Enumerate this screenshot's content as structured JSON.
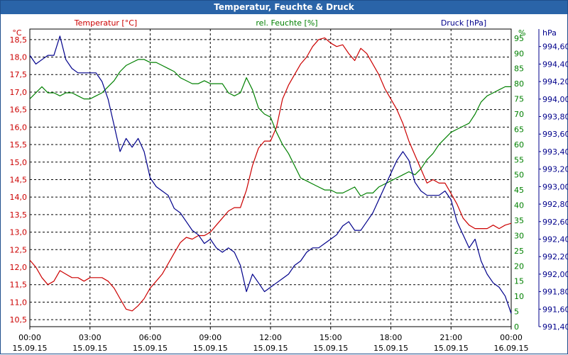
{
  "window": {
    "title": "Temperatur, Feuchte & Druck"
  },
  "colors": {
    "temperature": "#cc0000",
    "humidity": "#008000",
    "pressure": "#00008b",
    "title_bg": "#2a64a8",
    "grid": "#000000"
  },
  "chart_data": {
    "type": "line",
    "title": "Temperatur, Feuchte & Druck",
    "grid": true,
    "x_ticks": [
      {
        "time": "00:00",
        "date": "15.09.15"
      },
      {
        "time": "03:00",
        "date": "15.09.15"
      },
      {
        "time": "06:00",
        "date": "15.09.15"
      },
      {
        "time": "09:00",
        "date": "15.09.15"
      },
      {
        "time": "12:00",
        "date": "15.09.15"
      },
      {
        "time": "15:00",
        "date": "15.09.15"
      },
      {
        "time": "18:00",
        "date": "15.09.15"
      },
      {
        "time": "21:00",
        "date": "15.09.15"
      },
      {
        "time": "00:00",
        "date": "16.09.15"
      }
    ],
    "axes": {
      "temperature": {
        "label": "Temperatur [°C]",
        "unit": "°C",
        "ylim": [
          10.3,
          18.8
        ],
        "ticks": [
          "10,5",
          "11,0",
          "11,5",
          "12,0",
          "12,5",
          "13,0",
          "13,5",
          "14,0",
          "14,5",
          "15,0",
          "15,5",
          "16,0",
          "16,5",
          "17,0",
          "17,5",
          "18,0",
          "18,5"
        ]
      },
      "humidity": {
        "label": "rel. Feuchte [%]",
        "unit": "%",
        "ylim": [
          0,
          98
        ],
        "ticks": [
          "0",
          "5",
          "10",
          "15",
          "20",
          "25",
          "30",
          "35",
          "40",
          "45",
          "50",
          "55",
          "60",
          "65",
          "70",
          "75",
          "80",
          "85",
          "90",
          "95"
        ]
      },
      "pressure": {
        "label": "Druck [hPa]",
        "unit": "hPa",
        "ylim": [
          991.4,
          994.8
        ],
        "ticks": [
          "991,40",
          "991,60",
          "991,80",
          "992,00",
          "992,20",
          "992,40",
          "992,60",
          "992,80",
          "993,00",
          "993,20",
          "993,40",
          "993,60",
          "993,80",
          "994,00",
          "994,20",
          "994,40",
          "994,60"
        ]
      }
    },
    "x_range_hours": [
      0,
      24
    ],
    "series": [
      {
        "name": "Temperatur [°C]",
        "axis": "temperature",
        "x": [
          0,
          0.3,
          0.6,
          0.9,
          1.2,
          1.5,
          1.8,
          2.1,
          2.4,
          2.7,
          3.0,
          3.3,
          3.6,
          3.9,
          4.2,
          4.5,
          4.8,
          5.1,
          5.4,
          5.7,
          6.0,
          6.3,
          6.6,
          6.9,
          7.2,
          7.5,
          7.8,
          8.1,
          8.4,
          8.7,
          9.0,
          9.3,
          9.6,
          9.9,
          10.2,
          10.5,
          10.8,
          11.1,
          11.4,
          11.7,
          12.0,
          12.3,
          12.6,
          12.9,
          13.2,
          13.5,
          13.8,
          14.1,
          14.4,
          14.7,
          15.0,
          15.3,
          15.6,
          15.9,
          16.2,
          16.5,
          16.8,
          17.1,
          17.4,
          17.7,
          18.0,
          18.3,
          18.6,
          18.9,
          19.2,
          19.5,
          19.8,
          20.1,
          20.4,
          20.7,
          21.0,
          21.3,
          21.6,
          21.9,
          22.2,
          22.5,
          22.8,
          23.1,
          23.4,
          23.7,
          24.0
        ],
        "values": [
          12.2,
          12.0,
          11.7,
          11.5,
          11.6,
          11.9,
          11.8,
          11.7,
          11.7,
          11.6,
          11.7,
          11.7,
          11.7,
          11.6,
          11.4,
          11.1,
          10.8,
          10.75,
          10.9,
          11.1,
          11.4,
          11.6,
          11.8,
          12.1,
          12.4,
          12.7,
          12.85,
          12.8,
          12.9,
          12.9,
          13.0,
          13.2,
          13.4,
          13.6,
          13.7,
          13.7,
          14.2,
          14.9,
          15.4,
          15.6,
          15.6,
          16.0,
          16.8,
          17.2,
          17.5,
          17.8,
          18.0,
          18.3,
          18.5,
          18.55,
          18.4,
          18.3,
          18.35,
          18.1,
          17.9,
          18.25,
          18.1,
          17.8,
          17.5,
          17.1,
          16.8,
          16.5,
          16.1,
          15.6,
          15.2,
          14.8,
          14.4,
          14.5,
          14.4,
          14.4,
          14.1,
          13.8,
          13.4,
          13.2,
          13.1,
          13.1,
          13.1,
          13.2,
          13.1,
          13.2,
          13.25
        ]
      },
      {
        "name": "rel. Feuchte [%]",
        "axis": "humidity",
        "x": [
          0,
          0.3,
          0.6,
          0.9,
          1.2,
          1.5,
          1.8,
          2.1,
          2.4,
          2.7,
          3.0,
          3.3,
          3.6,
          3.9,
          4.2,
          4.5,
          4.8,
          5.1,
          5.4,
          5.7,
          6.0,
          6.3,
          6.6,
          6.9,
          7.2,
          7.5,
          7.8,
          8.1,
          8.4,
          8.7,
          9.0,
          9.3,
          9.6,
          9.9,
          10.2,
          10.5,
          10.8,
          11.1,
          11.4,
          11.7,
          12.0,
          12.3,
          12.6,
          12.9,
          13.2,
          13.5,
          13.8,
          14.1,
          14.4,
          14.7,
          15.0,
          15.3,
          15.6,
          15.9,
          16.2,
          16.5,
          16.8,
          17.1,
          17.4,
          17.7,
          18.0,
          18.3,
          18.6,
          18.9,
          19.2,
          19.5,
          19.8,
          20.1,
          20.4,
          20.7,
          21.0,
          21.3,
          21.6,
          21.9,
          22.2,
          22.5,
          22.8,
          23.1,
          23.4,
          23.7,
          24.0
        ],
        "values": [
          75,
          77,
          79,
          77,
          77,
          76,
          77,
          77,
          76,
          75,
          75,
          76,
          77,
          79,
          81,
          84,
          86,
          87,
          88,
          88,
          87,
          87,
          86,
          85,
          84,
          82,
          81,
          80,
          80,
          81,
          80,
          80,
          80,
          77,
          76,
          77,
          82,
          78,
          72,
          70,
          69,
          64,
          60,
          57,
          53,
          49,
          48,
          47,
          46,
          45,
          45,
          44,
          44,
          45,
          46,
          43,
          44,
          44,
          46,
          47,
          48,
          49,
          50,
          51,
          50,
          52,
          55,
          57,
          60,
          62,
          64,
          65,
          66,
          67,
          70,
          74,
          76,
          77,
          78,
          79,
          79
        ]
      },
      {
        "name": "Druck [hPa]",
        "axis": "pressure",
        "x": [
          0,
          0.3,
          0.6,
          0.9,
          1.2,
          1.5,
          1.8,
          2.1,
          2.4,
          2.7,
          3.0,
          3.3,
          3.6,
          3.9,
          4.2,
          4.5,
          4.8,
          5.1,
          5.4,
          5.7,
          6.0,
          6.3,
          6.6,
          6.9,
          7.2,
          7.5,
          7.8,
          8.1,
          8.4,
          8.7,
          9.0,
          9.3,
          9.6,
          9.9,
          10.2,
          10.5,
          10.8,
          11.1,
          11.4,
          11.7,
          12.0,
          12.3,
          12.6,
          12.9,
          13.2,
          13.5,
          13.8,
          14.1,
          14.4,
          14.7,
          15.0,
          15.3,
          15.6,
          15.9,
          16.2,
          16.5,
          16.8,
          17.1,
          17.4,
          17.7,
          18.0,
          18.3,
          18.6,
          18.9,
          19.2,
          19.5,
          19.8,
          20.1,
          20.4,
          20.7,
          21.0,
          21.3,
          21.6,
          21.9,
          22.2,
          22.5,
          22.8,
          23.1,
          23.4,
          23.7,
          24.0
        ],
        "values": [
          994.5,
          994.4,
          994.45,
          994.5,
          994.5,
          994.72,
          994.45,
          994.35,
          994.3,
          994.3,
          994.3,
          994.3,
          994.2,
          994.0,
          993.7,
          993.4,
          993.55,
          993.45,
          993.55,
          993.4,
          993.1,
          993.0,
          992.95,
          992.9,
          992.75,
          992.7,
          992.6,
          992.5,
          992.45,
          992.35,
          992.4,
          992.3,
          992.25,
          992.3,
          992.25,
          992.1,
          991.8,
          992.0,
          991.9,
          991.8,
          991.85,
          991.9,
          991.95,
          992.0,
          992.1,
          992.15,
          992.25,
          992.3,
          992.3,
          992.35,
          992.4,
          992.45,
          992.55,
          992.6,
          992.5,
          992.5,
          992.6,
          992.7,
          992.85,
          993.0,
          993.15,
          993.3,
          993.4,
          993.3,
          993.05,
          992.95,
          992.9,
          992.9,
          992.9,
          992.95,
          992.85,
          992.6,
          992.45,
          992.3,
          992.4,
          992.15,
          992.0,
          991.9,
          991.85,
          991.75,
          991.55
        ]
      }
    ]
  }
}
